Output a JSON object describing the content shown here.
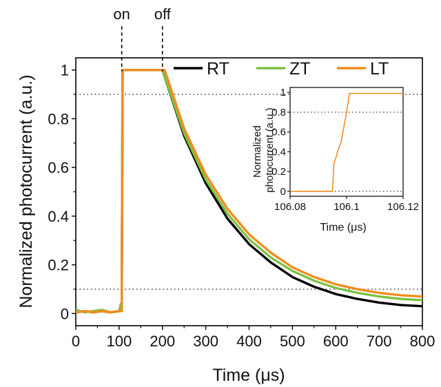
{
  "chart_data": [
    {
      "type": "line",
      "xlabel": "Time (μs)",
      "ylabel": "Normalized photocurrent (a.u.)",
      "xlim": [
        0,
        800
      ],
      "ylim": [
        -0.05,
        1.05
      ],
      "x_ticks": [
        "0",
        "100",
        "200",
        "300",
        "400",
        "500",
        "600",
        "700",
        "800"
      ],
      "y_ticks": [
        "0",
        "0.2",
        "0.4",
        "0.6",
        "0.8",
        "1"
      ],
      "x_tick_values": [
        0,
        100,
        200,
        300,
        400,
        500,
        600,
        700,
        800
      ],
      "y_tick_values": [
        0,
        0.2,
        0.4,
        0.6,
        0.8,
        1
      ],
      "reference_lines_y": [
        0.1,
        0.9
      ],
      "annotations": [
        {
          "text": "on",
          "x": 106
        },
        {
          "text": "off",
          "x": 200
        }
      ],
      "legend_position": "top-right",
      "series": [
        {
          "name": "RT",
          "color": "#000000",
          "x": [
            0,
            20,
            40,
            60,
            80,
            100,
            106,
            108,
            150,
            200,
            250,
            300,
            350,
            400,
            450,
            500,
            550,
            600,
            650,
            700,
            750,
            800
          ],
          "y": [
            0.005,
            0.01,
            0.005,
            0.01,
            0.005,
            0.01,
            0.01,
            1.0,
            1.0,
            1.0,
            0.73,
            0.535,
            0.39,
            0.285,
            0.21,
            0.15,
            0.11,
            0.08,
            0.06,
            0.045,
            0.035,
            0.03
          ]
        },
        {
          "name": "ZT",
          "color": "#7cc242",
          "x": [
            0,
            20,
            40,
            60,
            80,
            100,
            104,
            106,
            108,
            150,
            200,
            250,
            300,
            350,
            400,
            450,
            500,
            550,
            600,
            650,
            700,
            750,
            800
          ],
          "y": [
            0.015,
            0.005,
            0.01,
            0.015,
            0.005,
            0.01,
            0.04,
            0.01,
            1.0,
            1.0,
            1.0,
            0.74,
            0.55,
            0.41,
            0.305,
            0.23,
            0.175,
            0.135,
            0.105,
            0.085,
            0.07,
            0.06,
            0.055
          ]
        },
        {
          "name": "LT",
          "color": "#f28c1e",
          "x": [
            0,
            20,
            40,
            60,
            80,
            100,
            106,
            108,
            150,
            200,
            205,
            250,
            300,
            350,
            400,
            450,
            500,
            550,
            600,
            650,
            700,
            750,
            800
          ],
          "y": [
            0.005,
            0.01,
            0.005,
            0.01,
            0.005,
            0.01,
            0.01,
            1.0,
            1.0,
            1.0,
            1.0,
            0.76,
            0.57,
            0.43,
            0.325,
            0.25,
            0.19,
            0.15,
            0.12,
            0.1,
            0.085,
            0.075,
            0.07
          ]
        }
      ]
    },
    {
      "type": "line",
      "xlabel": "Time (μs)",
      "ylabel": "Normalized photocurrent (a.u.)",
      "xlim": [
        106.08,
        106.12
      ],
      "ylim": [
        -0.05,
        1.05
      ],
      "x_ticks": [
        "106.08",
        "106.1",
        "106.12"
      ],
      "y_ticks": [
        "0",
        "0.2",
        "0.4",
        "0.6",
        "0.8",
        "1"
      ],
      "x_tick_values": [
        106.08,
        106.1,
        106.12
      ],
      "y_tick_values": [
        0,
        0.2,
        0.4,
        0.6,
        0.8,
        1
      ],
      "reference_lines_y": [
        0.0,
        0.8
      ],
      "series": [
        {
          "name": "LT",
          "color": "#f28c1e",
          "x": [
            106.08,
            106.095,
            106.0955,
            106.0962,
            106.0975,
            106.098,
            106.1,
            106.101,
            106.12
          ],
          "y": [
            0.0,
            0.0,
            0.28,
            0.34,
            0.46,
            0.49,
            0.8,
            0.99,
            0.99
          ]
        }
      ]
    }
  ]
}
